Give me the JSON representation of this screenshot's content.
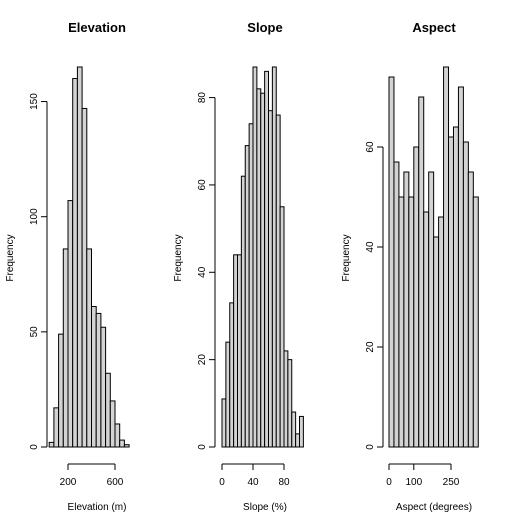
{
  "chart_data": [
    {
      "type": "bar",
      "title": "Elevation",
      "xlabel": "Elevation (m)",
      "ylabel": "Frequency",
      "bin_width": 40,
      "x_start": 40,
      "values": [
        2,
        17,
        49,
        86,
        107,
        160,
        165,
        147,
        86,
        61,
        58,
        52,
        32,
        20,
        10,
        3,
        1
      ],
      "x_ticks": [
        200,
        600
      ],
      "y_ticks": [
        0,
        50,
        100,
        150
      ],
      "xlim": [
        40,
        720
      ],
      "ylim": [
        0,
        165
      ],
      "grid": false,
      "bar_color": "#d3d3d3"
    },
    {
      "type": "bar",
      "title": "Slope",
      "xlabel": "Slope (%)",
      "ylabel": "Frequency",
      "bin_width": 5,
      "x_start": 0,
      "values": [
        11,
        24,
        33,
        44,
        44,
        62,
        69,
        74,
        87,
        82,
        81,
        86,
        77,
        87,
        76,
        55,
        22,
        20,
        8,
        3,
        7
      ],
      "x_ticks": [
        0,
        40,
        80
      ],
      "y_ticks": [
        0,
        20,
        40,
        60,
        80
      ],
      "xlim": [
        0,
        105
      ],
      "ylim": [
        0,
        87
      ],
      "grid": false,
      "bar_color": "#d3d3d3"
    },
    {
      "type": "bar",
      "title": "Aspect",
      "xlabel": "Aspect (degrees)",
      "ylabel": "Frequency",
      "bin_width": 20,
      "x_start": 0,
      "values": [
        74,
        57,
        50,
        55,
        50,
        60,
        70,
        47,
        55,
        42,
        46,
        76,
        62,
        64,
        72,
        61,
        55,
        50
      ],
      "x_ticks": [
        0,
        100,
        250
      ],
      "y_ticks": [
        0,
        20,
        40,
        60
      ],
      "xlim": [
        0,
        360
      ],
      "ylim": [
        0,
        76
      ],
      "grid": false,
      "bar_color": "#d3d3d3"
    }
  ]
}
